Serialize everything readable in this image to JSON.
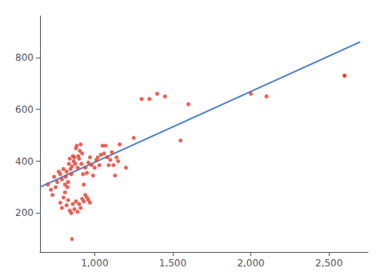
{
  "chart_data": {
    "type": "scatter",
    "series": [
      {
        "type": "scatter",
        "color": "#e8392a",
        "x": [
          700,
          720,
          730,
          740,
          750,
          760,
          770,
          780,
          790,
          800,
          810,
          815,
          820,
          825,
          830,
          835,
          840,
          845,
          850,
          855,
          860,
          865,
          870,
          875,
          880,
          885,
          890,
          895,
          900,
          905,
          910,
          915,
          920,
          925,
          930,
          940,
          950,
          960,
          970,
          980,
          990,
          1000,
          1010,
          1020,
          1030,
          1040,
          1050,
          1060,
          1070,
          1080,
          1090,
          1100,
          1110,
          1120,
          1130,
          1140,
          1150,
          1160,
          1200,
          1250,
          1300,
          1350,
          1400,
          1450,
          1550,
          1600,
          2000,
          2100,
          2600,
          780,
          790,
          800,
          810,
          820,
          830,
          840,
          850,
          860,
          870,
          880,
          890,
          900,
          910,
          920,
          930,
          940,
          950,
          960,
          970
        ],
        "values": [
          310,
          290,
          270,
          340,
          300,
          320,
          360,
          350,
          330,
          370,
          310,
          340,
          360,
          300,
          320,
          390,
          410,
          370,
          350,
          380,
          420,
          400,
          415,
          390,
          450,
          460,
          375,
          420,
          410,
          440,
          465,
          390,
          430,
          350,
          310,
          375,
          355,
          395,
          415,
          385,
          345,
          375,
          405,
          415,
          385,
          425,
          460,
          430,
          460,
          415,
          385,
          405,
          435,
          385,
          345,
          415,
          400,
          465,
          375,
          490,
          640,
          640,
          660,
          650,
          480,
          620,
          660,
          650,
          730,
          240,
          220,
          260,
          280,
          230,
          250,
          210,
          200,
          235,
          215,
          245,
          205,
          235,
          220,
          255,
          245,
          270,
          260,
          250,
          240
        ]
      },
      {
        "type": "scatter",
        "color": "#e8392a",
        "x": [
          855,
          2600
        ],
        "values": [
          100,
          730
        ]
      },
      {
        "type": "line",
        "color": "#4d7ec9",
        "x": [
          650,
          2700
        ],
        "values": [
          300,
          860
        ]
      }
    ],
    "xlim": [
      650,
      2750
    ],
    "ylim": [
      50,
      960
    ],
    "xticks": [
      {
        "value": 1000,
        "label": "1,000"
      },
      {
        "value": 1500,
        "label": "1,500"
      },
      {
        "value": 2000,
        "label": "2,000"
      },
      {
        "value": 2500,
        "label": "2,500"
      }
    ],
    "yticks": [
      200,
      400,
      600,
      800
    ],
    "grid": false
  }
}
